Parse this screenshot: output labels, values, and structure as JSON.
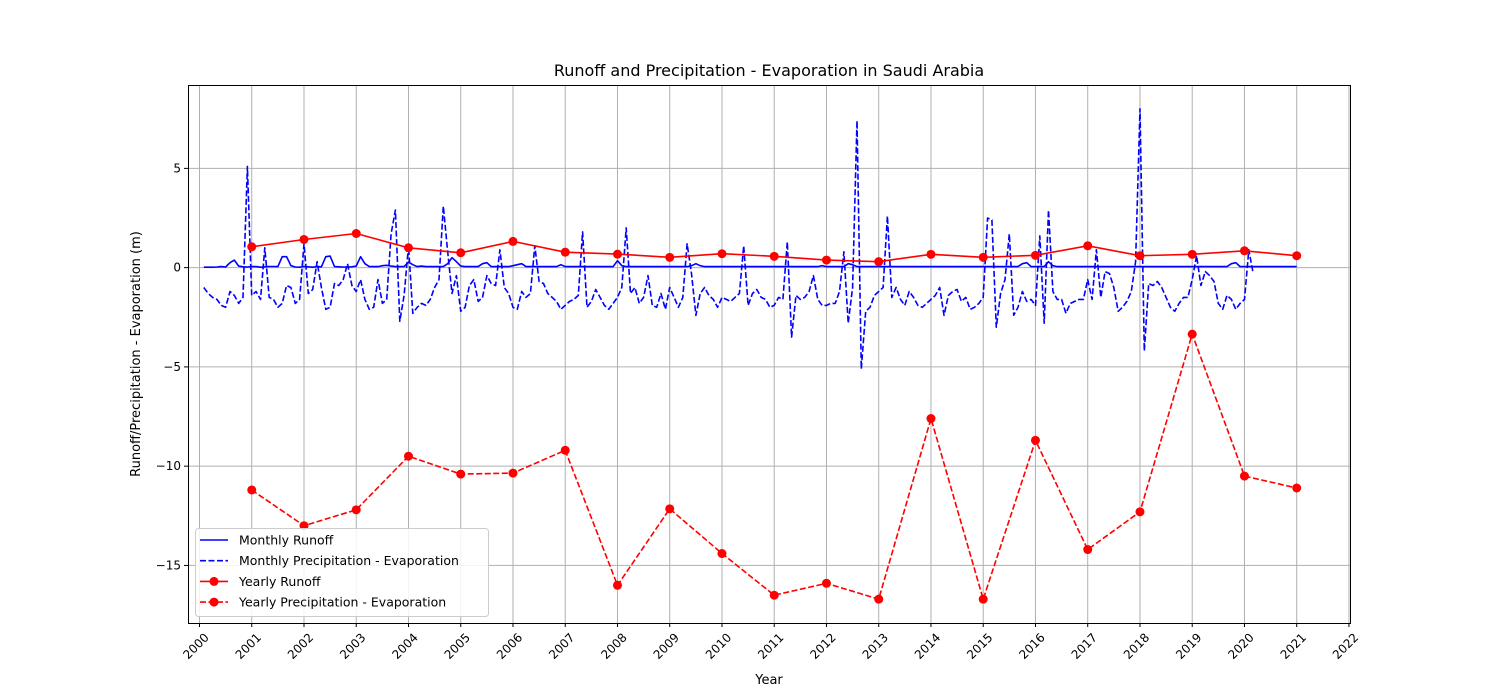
{
  "chart_data": {
    "type": "line",
    "title": "Runoff and Precipitation - Evaporation in Saudi Arabia",
    "xlabel": "Year",
    "ylabel": "Runoff/Precipitation - Evaporation (m)",
    "xlim": [
      1999.78,
      2022.02
    ],
    "ylim": [
      -17.9,
      9.2
    ],
    "x_ticks": [
      2000,
      2001,
      2002,
      2003,
      2004,
      2005,
      2006,
      2007,
      2008,
      2009,
      2010,
      2011,
      2012,
      2013,
      2014,
      2015,
      2016,
      2017,
      2018,
      2019,
      2020,
      2021,
      2022
    ],
    "x_tick_labels": [
      "2000",
      "2001",
      "2002",
      "2003",
      "2004",
      "2005",
      "2006",
      "2007",
      "2008",
      "2009",
      "2010",
      "2011",
      "2012",
      "2013",
      "2014",
      "2015",
      "2016",
      "2017",
      "2018",
      "2019",
      "2020",
      "2021",
      "2022"
    ],
    "y_ticks": [
      5,
      0,
      -5,
      -10,
      -15
    ],
    "y_tick_labels": [
      "5",
      "0",
      "−5",
      "−10",
      "−15"
    ],
    "grid": true,
    "legend_position": "lower-left",
    "colors": {
      "monthly": "#0000ff",
      "yearly": "#ff0000"
    },
    "series": [
      {
        "name": "Monthly Runoff",
        "style": "solid",
        "color": "#0000ff",
        "marker": "none",
        "monthly_start": "2000-02",
        "values": [
          0.02,
          0.02,
          0.02,
          0.03,
          0.05,
          0.03,
          0.25,
          0.38,
          0.08,
          0.04,
          0.03,
          0.06,
          0.05,
          0.02,
          0.04,
          0.06,
          0.06,
          0.05,
          0.55,
          0.55,
          0.1,
          0.03,
          0.02,
          0.06,
          0.04,
          0.02,
          0.05,
          0.04,
          0.55,
          0.58,
          0.05,
          0.04,
          0.03,
          0.03,
          0.04,
          0.08,
          0.55,
          0.2,
          0.05,
          0.05,
          0.05,
          0.1,
          0.12,
          0.08,
          0.05,
          0.05,
          0.05,
          0.28,
          0.15,
          0.05,
          0.08,
          0.05,
          0.05,
          0.05,
          0.05,
          0.05,
          0.2,
          0.5,
          0.3,
          0.08,
          0.05,
          0.05,
          0.05,
          0.05,
          0.2,
          0.25,
          0.05,
          0.05,
          0.05,
          0.05,
          0.05,
          0.1,
          0.15,
          0.2,
          0.05,
          0.05,
          0.05,
          0.05,
          0.05,
          0.05,
          0.05,
          0.05,
          0.15,
          0.05,
          0.05,
          0.05,
          0.05,
          0.05,
          0.05,
          0.05,
          0.05,
          0.05,
          0.05,
          0.05,
          0.05,
          0.35,
          0.1,
          0.05,
          0.05,
          0.05,
          0.05,
          0.05,
          0.05,
          0.05,
          0.05,
          0.05,
          0.05,
          0.05,
          0.05,
          0.05,
          0.05,
          0.05,
          0.1,
          0.2,
          0.1,
          0.05,
          0.05,
          0.05,
          0.05,
          0.05,
          0.05,
          0.05,
          0.05,
          0.05,
          0.05,
          0.05,
          0.05,
          0.05,
          0.05,
          0.05,
          0.05,
          0.05,
          0.05,
          0.05,
          0.05,
          0.05,
          0.05,
          0.05,
          0.05,
          0.05,
          0.05,
          0.05,
          0.1,
          0.05,
          0.05,
          0.05,
          0.05,
          0.05,
          0.2,
          0.15,
          0.05,
          0.05,
          0.05,
          0.05,
          0.05,
          0.05,
          0.05,
          0.05,
          0.05,
          0.05,
          0.05,
          0.05,
          0.05,
          0.05,
          0.05,
          0.05,
          0.05,
          0.05,
          0.05,
          0.05,
          0.05,
          0.05,
          0.05,
          0.05,
          0.05,
          0.05,
          0.05,
          0.05,
          0.05,
          0.05,
          0.05,
          0.05,
          0.05,
          0.05,
          0.05,
          0.05,
          0.05,
          0.05,
          0.2,
          0.25,
          0.05,
          0.05,
          0.05,
          0.05,
          0.3,
          0.1,
          0.05,
          0.05,
          0.05,
          0.05,
          0.05,
          0.05,
          0.05,
          0.05,
          0.05,
          0.05,
          0.05,
          0.05,
          0.05,
          0.05,
          0.05,
          0.05,
          0.05,
          0.05,
          0.05,
          0.05,
          0.05,
          0.05,
          0.05,
          0.05,
          0.05,
          0.05,
          0.05,
          0.05,
          0.05,
          0.05,
          0.05,
          0.05,
          0.05,
          0.05,
          0.05,
          0.05,
          0.05,
          0.05,
          0.05,
          0.05,
          0.2,
          0.25,
          0.05,
          0.05,
          0.05,
          0.05,
          0.05,
          0.05,
          0.05,
          0.05,
          0.05,
          0.05,
          0.05,
          0.05,
          0.05,
          0.05
        ]
      },
      {
        "name": "Monthly Precipitation - Evaporation",
        "style": "dashed",
        "color": "#0000ff",
        "marker": "none",
        "monthly_start": "2000-02",
        "values": [
          -1.0,
          -1.3,
          -1.5,
          -1.6,
          -1.9,
          -2.0,
          -1.2,
          -1.4,
          -1.8,
          -1.5,
          5.1,
          -1.4,
          -1.2,
          -1.6,
          1.0,
          -1.5,
          -1.6,
          -2.0,
          -1.8,
          -0.9,
          -1.0,
          -1.8,
          -1.6,
          1.2,
          -1.3,
          -1.1,
          0.3,
          -1.0,
          -2.1,
          -2.0,
          -0.8,
          -0.9,
          -0.6,
          0.2,
          -0.9,
          -1.2,
          -0.6,
          -1.6,
          -2.1,
          -2.0,
          -0.6,
          -1.8,
          -1.6,
          1.7,
          2.9,
          -2.7,
          -1.4,
          1.1,
          -2.3,
          -2.0,
          -1.8,
          -1.9,
          -1.6,
          -1.0,
          -0.6,
          3.1,
          0.8,
          -1.3,
          -0.4,
          -2.2,
          -2.0,
          -0.9,
          -0.6,
          -1.7,
          -1.5,
          -0.4,
          -0.8,
          -0.9,
          0.9,
          -1.0,
          -1.3,
          -2.0,
          -2.1,
          -1.2,
          -1.5,
          -1.3,
          1.1,
          -0.7,
          -0.8,
          -1.3,
          -1.5,
          -1.7,
          -2.1,
          -1.9,
          -1.7,
          -1.6,
          -1.4,
          1.8,
          -2.0,
          -1.7,
          -1.1,
          -1.5,
          -1.9,
          -2.1,
          -1.8,
          -1.5,
          -1.0,
          2.0,
          -1.3,
          -1.0,
          -1.8,
          -1.5,
          -0.4,
          -1.9,
          -2.0,
          -1.3,
          -2.1,
          -1.0,
          -1.5,
          -2.0,
          -1.5,
          1.2,
          -0.3,
          -2.4,
          -1.3,
          -1.0,
          -1.4,
          -1.6,
          -2.0,
          -1.5,
          -1.6,
          -1.7,
          -1.5,
          -1.3,
          1.1,
          -1.9,
          -1.3,
          -1.1,
          -1.5,
          -1.6,
          -2.0,
          -1.9,
          -1.5,
          -1.6,
          1.3,
          -3.5,
          -1.4,
          -1.6,
          -1.5,
          -1.2,
          -0.4,
          -1.6,
          -1.9,
          -1.9,
          -1.8,
          -1.8,
          -1.2,
          0.8,
          -2.8,
          -1.0,
          7.4,
          -5.1,
          -2.2,
          -2.0,
          -1.4,
          -1.2,
          -1.0,
          2.6,
          -1.5,
          -1.0,
          -1.6,
          -1.9,
          -1.2,
          -1.5,
          -1.9,
          -2.0,
          -1.8,
          -1.6,
          -1.4,
          -1.0,
          -2.4,
          -1.4,
          -1.2,
          -1.1,
          -1.7,
          -1.5,
          -2.1,
          -2.0,
          -1.8,
          -1.5,
          2.5,
          2.4,
          -3.0,
          -1.3,
          -0.6,
          1.7,
          -2.4,
          -2.0,
          -1.2,
          -1.7,
          -1.6,
          -1.9,
          1.6,
          -2.8,
          2.9,
          -1.2,
          -1.6,
          -1.6,
          -2.3,
          -1.8,
          -1.7,
          -1.6,
          -1.6,
          -0.6,
          -1.6,
          0.9,
          -1.5,
          -0.2,
          -0.3,
          -1.0,
          -2.2,
          -2.0,
          -1.7,
          -1.2,
          0.3,
          8.0,
          -4.2,
          -0.8,
          -0.9,
          -0.7,
          -1.0,
          -1.5,
          -2.0,
          -2.2,
          -1.8,
          -1.5,
          -1.5,
          -0.6,
          0.6,
          -0.9,
          -0.2,
          -0.4,
          -0.7,
          -1.8,
          -2.1,
          -1.4,
          -1.6,
          -2.1,
          -1.8,
          -1.6,
          0.9,
          -0.3
        ]
      },
      {
        "name": "Yearly Runoff",
        "style": "solid",
        "color": "#ff0000",
        "marker": "circle",
        "x": [
          2001,
          2002,
          2003,
          2004,
          2005,
          2006,
          2007,
          2008,
          2009,
          2010,
          2011,
          2012,
          2013,
          2014,
          2015,
          2016,
          2017,
          2018,
          2019,
          2020,
          2021
        ],
        "values": [
          1.05,
          1.42,
          1.72,
          1.0,
          0.75,
          1.32,
          0.78,
          0.68,
          0.52,
          0.7,
          0.57,
          0.38,
          0.3,
          0.67,
          0.52,
          0.62,
          1.1,
          0.6,
          0.67,
          0.85,
          0.6
        ]
      },
      {
        "name": "Yearly Precipitation - Evaporation",
        "style": "dashed",
        "color": "#ff0000",
        "marker": "circle",
        "x": [
          2001,
          2002,
          2003,
          2004,
          2005,
          2006,
          2007,
          2008,
          2009,
          2010,
          2011,
          2012,
          2013,
          2014,
          2015,
          2016,
          2017,
          2018,
          2019,
          2020,
          2021
        ],
        "values": [
          -11.2,
          -13.0,
          -12.2,
          -9.5,
          -10.4,
          -10.35,
          -9.2,
          -16.0,
          -12.15,
          -14.4,
          -16.5,
          -15.9,
          -16.7,
          -7.6,
          -16.7,
          -8.7,
          -14.2,
          -12.3,
          -3.35,
          -10.5,
          -11.1
        ]
      }
    ]
  }
}
